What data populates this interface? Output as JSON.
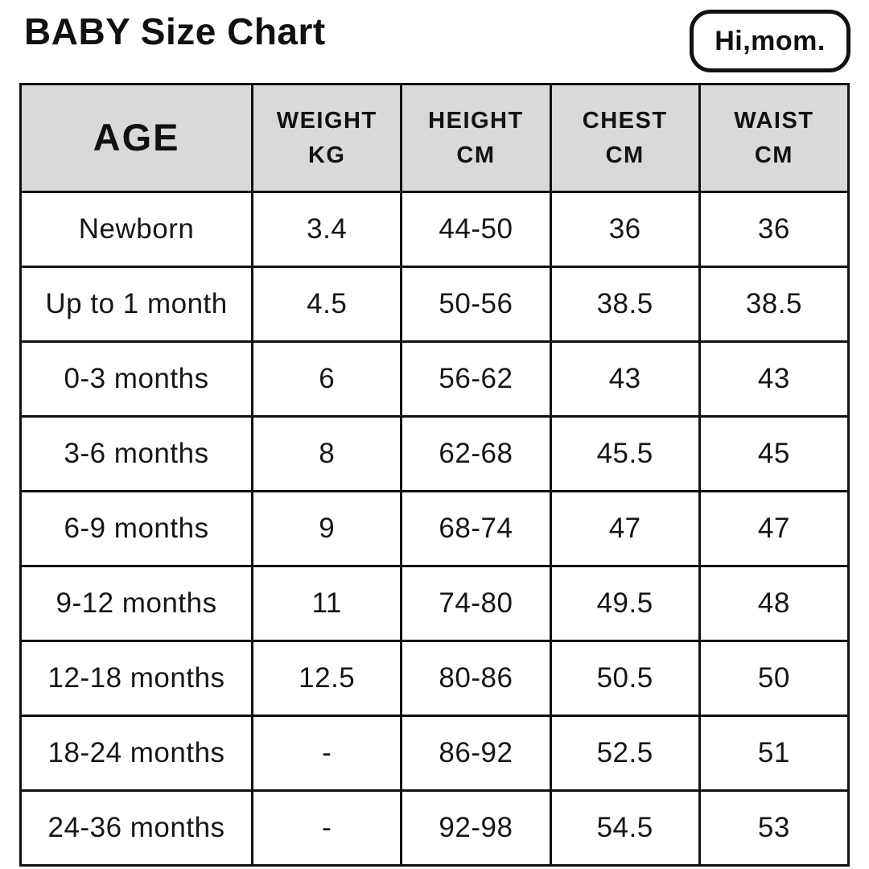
{
  "title": "BABY Size Chart",
  "brand": {
    "logo_text": "Hi,mom."
  },
  "colors": {
    "header_bg": "#d9d9d9",
    "grid_border": "#111111",
    "text": "#111111",
    "page_bg": "#ffffff"
  },
  "table": {
    "headers": [
      {
        "line1": "AGE",
        "line2": ""
      },
      {
        "line1": "WEIGHT",
        "line2": "KG"
      },
      {
        "line1": "HEIGHT",
        "line2": "CM"
      },
      {
        "line1": "CHEST",
        "line2": "CM"
      },
      {
        "line1": "WAIST",
        "line2": "CM"
      }
    ],
    "rows": [
      [
        "Newborn",
        "3.4",
        "44-50",
        "36",
        "36"
      ],
      [
        "Up to 1 month",
        "4.5",
        "50-56",
        "38.5",
        "38.5"
      ],
      [
        "0-3 months",
        "6",
        "56-62",
        "43",
        "43"
      ],
      [
        "3-6 months",
        "8",
        "62-68",
        "45.5",
        "45"
      ],
      [
        "6-9 months",
        "9",
        "68-74",
        "47",
        "47"
      ],
      [
        "9-12 months",
        "11",
        "74-80",
        "49.5",
        "48"
      ],
      [
        "12-18 months",
        "12.5",
        "80-86",
        "50.5",
        "50"
      ],
      [
        "18-24 months",
        "-",
        "86-92",
        "52.5",
        "51"
      ],
      [
        "24-36 months",
        "-",
        "92-98",
        "54.5",
        "53"
      ]
    ]
  },
  "chart_data": {
    "type": "table",
    "title": "BABY Size Chart",
    "columns": [
      "AGE",
      "WEIGHT KG",
      "HEIGHT CM",
      "CHEST CM",
      "WAIST CM"
    ],
    "rows": [
      [
        "Newborn",
        "3.4",
        "44-50",
        "36",
        "36"
      ],
      [
        "Up to 1 month",
        "4.5",
        "50-56",
        "38.5",
        "38.5"
      ],
      [
        "0-3 months",
        "6",
        "56-62",
        "43",
        "43"
      ],
      [
        "3-6 months",
        "8",
        "62-68",
        "45.5",
        "45"
      ],
      [
        "6-9 months",
        "9",
        "68-74",
        "47",
        "47"
      ],
      [
        "9-12 months",
        "11",
        "74-80",
        "49.5",
        "48"
      ],
      [
        "12-18 months",
        "12.5",
        "80-86",
        "50.5",
        "50"
      ],
      [
        "18-24 months",
        "-",
        "86-92",
        "52.5",
        "51"
      ],
      [
        "24-36 months",
        "-",
        "92-98",
        "54.5",
        "53"
      ]
    ]
  }
}
